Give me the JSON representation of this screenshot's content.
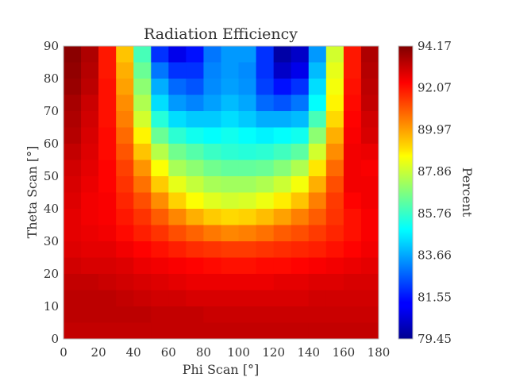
{
  "chart_data": {
    "type": "heatmap",
    "title": "Radiation Efficiency",
    "xlabel": "Phi Scan [°]",
    "ylabel": "Theta Scan [°]",
    "colorbar_label": "Percent",
    "x_ticks": [
      "0",
      "20",
      "40",
      "60",
      "80",
      "100",
      "120",
      "140",
      "160",
      "180"
    ],
    "y_ticks": [
      "0",
      "10",
      "20",
      "30",
      "40",
      "50",
      "60",
      "70",
      "80",
      "90"
    ],
    "colorbar_ticks": [
      "79.45",
      "81.55",
      "83.66",
      "85.76",
      "87.86",
      "89.97",
      "92.07",
      "94.17"
    ],
    "vmin": 79.45,
    "vmax": 94.17,
    "xlim": [
      0,
      180
    ],
    "ylim": [
      0,
      90
    ],
    "colormap": "jet",
    "x_bin_edges": [
      0,
      10,
      20,
      30,
      40,
      50,
      60,
      70,
      80,
      90,
      100,
      110,
      120,
      130,
      140,
      150,
      160,
      170,
      180
    ],
    "y_bin_edges": [
      0,
      5,
      10,
      15,
      20,
      25,
      30,
      35,
      40,
      45,
      50,
      55,
      60,
      65,
      70,
      75,
      80,
      85,
      90
    ],
    "rows_theta_high_to_low": [
      [
        94.0,
        93.5,
        92.0,
        89.5,
        86.0,
        82.0,
        81.0,
        81.5,
        83.0,
        83.5,
        83.5,
        82.0,
        80.0,
        80.5,
        83.5,
        88.0,
        92.0,
        93.5
      ],
      [
        93.9,
        93.4,
        92.0,
        89.8,
        86.5,
        83.0,
        82.0,
        82.0,
        83.2,
        83.5,
        83.3,
        82.0,
        80.5,
        81.0,
        84.0,
        88.3,
        92.0,
        93.4
      ],
      [
        93.8,
        93.3,
        92.1,
        90.0,
        87.0,
        83.8,
        82.8,
        82.5,
        83.3,
        83.6,
        83.4,
        82.2,
        81.5,
        82.0,
        84.5,
        88.5,
        92.1,
        93.3
      ],
      [
        93.6,
        93.1,
        92.1,
        90.3,
        87.5,
        84.5,
        83.5,
        83.2,
        83.6,
        84.0,
        83.7,
        82.8,
        82.5,
        83.0,
        85.0,
        88.8,
        92.2,
        93.2
      ],
      [
        93.5,
        93.0,
        92.1,
        90.5,
        88.0,
        85.5,
        84.5,
        84.2,
        84.2,
        84.5,
        84.2,
        83.8,
        83.8,
        84.0,
        86.0,
        89.2,
        92.3,
        93.0
      ],
      [
        93.4,
        92.9,
        92.2,
        90.8,
        88.8,
        86.5,
        85.6,
        85.2,
        85.0,
        85.2,
        85.0,
        84.8,
        85.0,
        85.2,
        87.0,
        89.8,
        92.4,
        92.9
      ],
      [
        93.2,
        92.8,
        92.2,
        91.1,
        89.5,
        87.6,
        86.6,
        86.2,
        85.8,
        85.6,
        85.5,
        85.6,
        85.9,
        86.3,
        88.0,
        90.3,
        92.5,
        92.6
      ],
      [
        93.0,
        92.7,
        92.3,
        91.4,
        90.2,
        88.6,
        87.4,
        87.0,
        86.6,
        86.4,
        86.4,
        86.5,
        86.9,
        87.5,
        89.0,
        90.8,
        92.5,
        92.4
      ],
      [
        92.9,
        92.6,
        92.3,
        91.6,
        90.7,
        89.4,
        88.3,
        87.8,
        87.4,
        87.3,
        87.3,
        87.5,
        87.9,
        88.5,
        89.8,
        91.2,
        92.5,
        92.5
      ],
      [
        92.8,
        92.5,
        92.4,
        91.8,
        91.2,
        90.3,
        89.3,
        88.6,
        88.2,
        88.0,
        88.1,
        88.4,
        88.9,
        89.5,
        90.5,
        91.5,
        92.3,
        92.5
      ],
      [
        92.7,
        92.5,
        92.4,
        92.0,
        91.6,
        91.0,
        90.4,
        89.8,
        89.4,
        89.2,
        89.3,
        89.6,
        90.0,
        90.5,
        91.0,
        91.6,
        92.1,
        92.4
      ],
      [
        92.7,
        92.6,
        92.5,
        92.2,
        91.9,
        91.6,
        91.2,
        90.9,
        90.6,
        90.4,
        90.5,
        90.7,
        91.0,
        91.2,
        91.5,
        91.8,
        92.1,
        92.4
      ],
      [
        92.8,
        92.7,
        92.7,
        92.5,
        92.3,
        92.1,
        91.9,
        91.7,
        91.6,
        91.5,
        91.5,
        91.6,
        91.7,
        91.8,
        91.9,
        92.1,
        92.3,
        92.5
      ],
      [
        93.0,
        92.9,
        92.9,
        92.8,
        92.6,
        92.5,
        92.4,
        92.3,
        92.2,
        92.1,
        92.1,
        92.2,
        92.2,
        92.3,
        92.4,
        92.5,
        92.6,
        92.7
      ],
      [
        93.2,
        93.2,
        93.1,
        93.0,
        92.9,
        92.8,
        92.7,
        92.6,
        92.6,
        92.6,
        92.6,
        92.6,
        92.7,
        92.7,
        92.8,
        92.8,
        92.9,
        92.9
      ],
      [
        93.3,
        93.3,
        93.3,
        93.2,
        93.1,
        93.0,
        93.0,
        92.9,
        92.9,
        92.9,
        92.9,
        92.9,
        92.9,
        92.9,
        93.0,
        93.0,
        93.0,
        93.0
      ],
      [
        93.3,
        93.3,
        93.3,
        93.3,
        93.3,
        93.2,
        93.2,
        93.2,
        93.1,
        93.1,
        93.1,
        93.1,
        93.1,
        93.1,
        93.1,
        93.1,
        93.1,
        93.1
      ],
      [
        93.2,
        93.2,
        93.2,
        93.2,
        93.2,
        93.2,
        93.2,
        93.2,
        93.2,
        93.2,
        93.2,
        93.2,
        93.2,
        93.2,
        93.2,
        93.2,
        93.2,
        93.2
      ]
    ]
  }
}
